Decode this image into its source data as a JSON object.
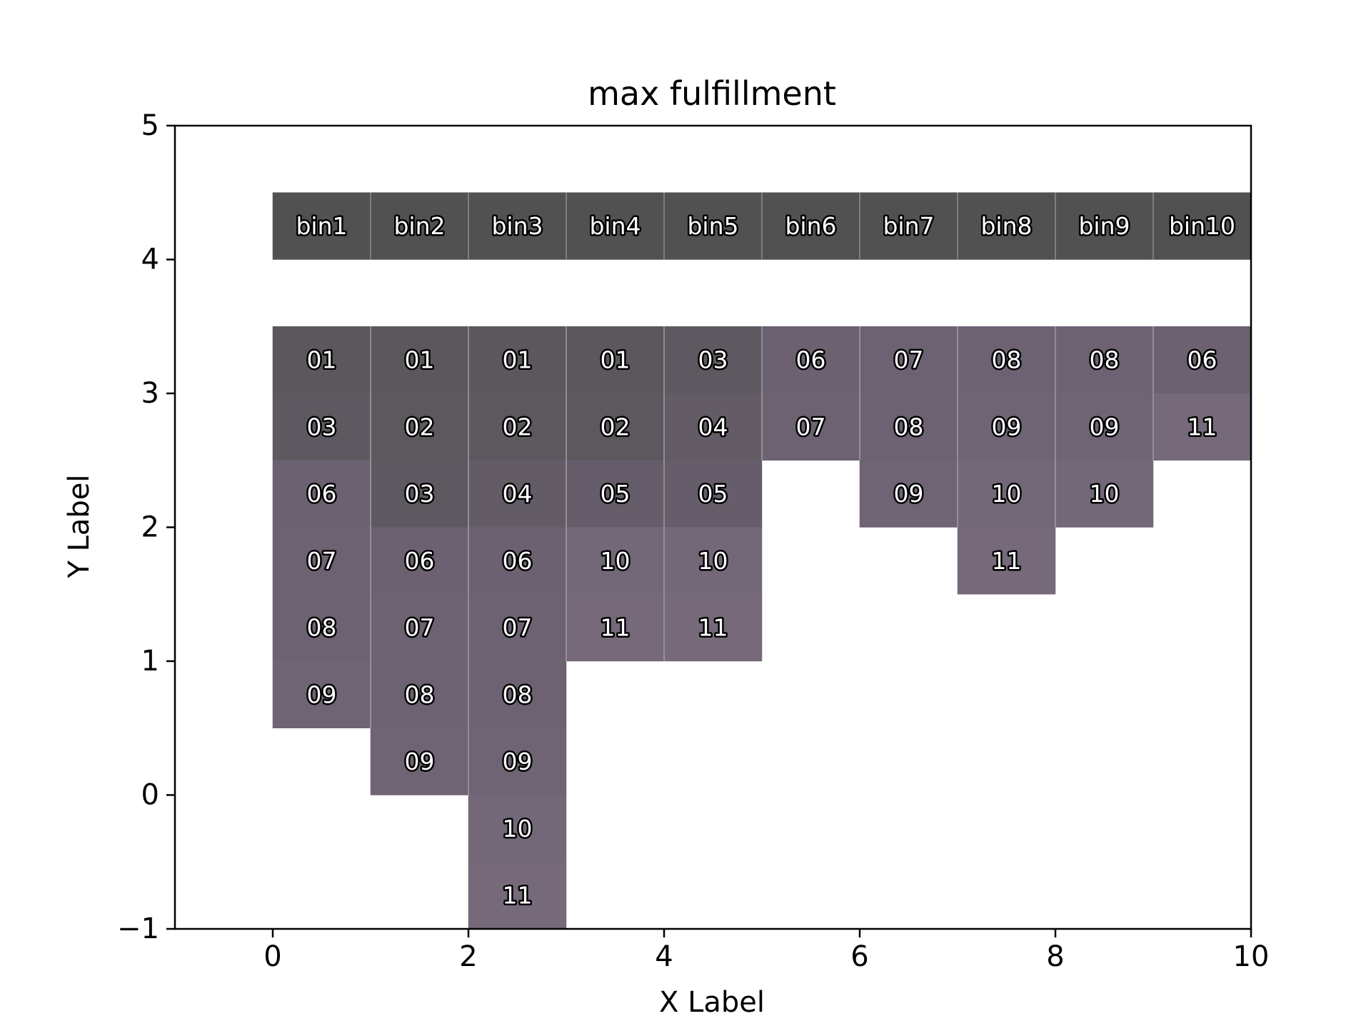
{
  "chart_data": {
    "type": "heatmap",
    "title": "max fulfillment",
    "xlabel": "X Label",
    "ylabel": "Y Label",
    "xlim": [
      -1,
      10
    ],
    "ylim": [
      -1,
      5
    ],
    "x_ticks": [
      "0",
      "2",
      "4",
      "6",
      "8",
      "10"
    ],
    "y_ticks": [
      "−1",
      "0",
      "1",
      "2",
      "3",
      "4",
      "5"
    ],
    "grid": false,
    "header_row": {
      "y": 4.25,
      "color": "#515151",
      "labels": [
        "bin1",
        "bin2",
        "bin3",
        "bin4",
        "bin5",
        "bin6",
        "bin7",
        "bin8",
        "bin9",
        "bin10"
      ]
    },
    "columns": [
      {
        "name": "bin1",
        "x": 0.5,
        "cells": [
          {
            "label": "01",
            "y": 3.25,
            "color": "#5b575c"
          },
          {
            "label": "03",
            "y": 2.75,
            "color": "#5e5960"
          },
          {
            "label": "06",
            "y": 2.25,
            "color": "#6b6170"
          },
          {
            "label": "07",
            "y": 1.75,
            "color": "#6c6271"
          },
          {
            "label": "08",
            "y": 1.25,
            "color": "#6c6272"
          },
          {
            "label": "09",
            "y": 0.75,
            "color": "#6e6474"
          }
        ]
      },
      {
        "name": "bin2",
        "x": 1.5,
        "cells": [
          {
            "label": "01",
            "y": 3.25,
            "color": "#5b575c"
          },
          {
            "label": "02",
            "y": 2.75,
            "color": "#5c585e"
          },
          {
            "label": "03",
            "y": 2.25,
            "color": "#5e5960"
          },
          {
            "label": "06",
            "y": 1.75,
            "color": "#6b6170"
          },
          {
            "label": "07",
            "y": 1.25,
            "color": "#6c6271"
          },
          {
            "label": "08",
            "y": 0.75,
            "color": "#6c6272"
          },
          {
            "label": "09",
            "y": 0.25,
            "color": "#6e6474"
          }
        ]
      },
      {
        "name": "bin3",
        "x": 2.5,
        "cells": [
          {
            "label": "01",
            "y": 3.25,
            "color": "#5b575c"
          },
          {
            "label": "02",
            "y": 2.75,
            "color": "#5c585e"
          },
          {
            "label": "04",
            "y": 2.25,
            "color": "#635c67"
          },
          {
            "label": "06",
            "y": 1.75,
            "color": "#6b6170"
          },
          {
            "label": "07",
            "y": 1.25,
            "color": "#6c6271"
          },
          {
            "label": "08",
            "y": 0.75,
            "color": "#6c6272"
          },
          {
            "label": "09",
            "y": 0.25,
            "color": "#6e6474"
          },
          {
            "label": "10",
            "y": -0.25,
            "color": "#736878"
          },
          {
            "label": "11",
            "y": -0.75,
            "color": "#75697a"
          }
        ]
      },
      {
        "name": "bin4",
        "x": 3.5,
        "cells": [
          {
            "label": "01",
            "y": 3.25,
            "color": "#5b575c"
          },
          {
            "label": "02",
            "y": 2.75,
            "color": "#5c585e"
          },
          {
            "label": "05",
            "y": 2.25,
            "color": "#655d69"
          },
          {
            "label": "10",
            "y": 1.75,
            "color": "#736878"
          },
          {
            "label": "11",
            "y": 1.25,
            "color": "#75697a"
          }
        ]
      },
      {
        "name": "bin5",
        "x": 4.5,
        "cells": [
          {
            "label": "03",
            "y": 3.25,
            "color": "#5e5960"
          },
          {
            "label": "04",
            "y": 2.75,
            "color": "#635c67"
          },
          {
            "label": "05",
            "y": 2.25,
            "color": "#655d69"
          },
          {
            "label": "10",
            "y": 1.75,
            "color": "#736878"
          },
          {
            "label": "11",
            "y": 1.25,
            "color": "#75697a"
          }
        ]
      },
      {
        "name": "bin6",
        "x": 5.5,
        "cells": [
          {
            "label": "06",
            "y": 3.25,
            "color": "#6b6170"
          },
          {
            "label": "07",
            "y": 2.75,
            "color": "#6c6271"
          }
        ]
      },
      {
        "name": "bin7",
        "x": 6.5,
        "cells": [
          {
            "label": "07",
            "y": 3.25,
            "color": "#6c6271"
          },
          {
            "label": "08",
            "y": 2.75,
            "color": "#6c6272"
          },
          {
            "label": "09",
            "y": 2.25,
            "color": "#6e6474"
          }
        ]
      },
      {
        "name": "bin8",
        "x": 7.5,
        "cells": [
          {
            "label": "08",
            "y": 3.25,
            "color": "#6c6272"
          },
          {
            "label": "09",
            "y": 2.75,
            "color": "#6e6474"
          },
          {
            "label": "10",
            "y": 2.25,
            "color": "#736878"
          },
          {
            "label": "11",
            "y": 1.75,
            "color": "#75697a"
          }
        ]
      },
      {
        "name": "bin9",
        "x": 8.5,
        "cells": [
          {
            "label": "08",
            "y": 3.25,
            "color": "#6c6272"
          },
          {
            "label": "09",
            "y": 2.75,
            "color": "#6e6474"
          },
          {
            "label": "10",
            "y": 2.25,
            "color": "#736878"
          }
        ]
      },
      {
        "name": "bin10",
        "x": 9.5,
        "cells": [
          {
            "label": "06",
            "y": 3.25,
            "color": "#6b6170"
          },
          {
            "label": "11",
            "y": 2.75,
            "color": "#75697a"
          }
        ]
      }
    ]
  }
}
